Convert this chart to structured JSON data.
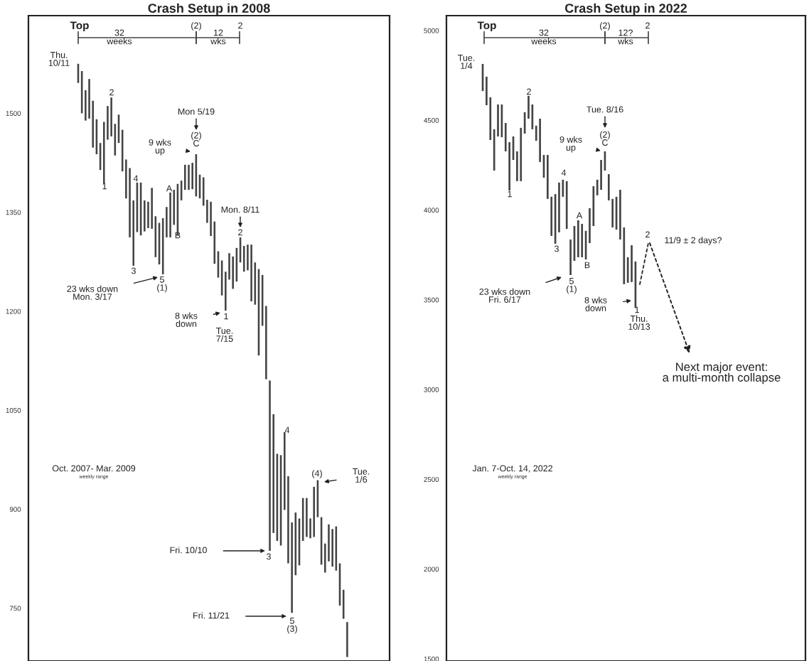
{
  "chart_data": [
    {
      "type": "bar",
      "title": "Crash Setup in 2008",
      "color": "#444444",
      "tick_labels": "y",
      "categories": [
        null,
        null,
        null,
        null,
        null,
        null,
        null,
        null,
        null,
        null,
        null,
        null,
        null,
        null,
        null,
        null,
        null,
        null,
        null,
        null,
        null,
        null,
        null,
        null,
        null,
        null,
        null,
        null,
        null,
        null,
        null,
        null,
        null,
        null,
        null,
        null,
        null,
        null,
        null,
        null,
        null,
        null,
        null,
        null,
        null,
        null,
        null,
        null,
        null,
        null,
        null,
        null,
        null,
        null,
        null,
        null,
        null,
        null,
        null,
        null,
        null,
        null,
        null,
        null,
        null,
        null,
        null,
        null,
        null,
        null,
        null,
        null,
        null,
        null,
        null,
        null,
        null,
        null,
        null,
        null,
        null,
        null,
        null,
        null,
        null,
        null,
        null,
        null,
        null,
        null,
        null,
        null,
        null,
        null,
        null,
        null,
        null,
        null
      ],
      "base": [
        null,
        null,
        null,
        null,
        null,
        null,
        null,
        null,
        null,
        null,
        null,
        null,
        null,
        1546,
        1500,
        1489,
        1492,
        1448,
        1438,
        1414,
        1393,
        1460,
        1465,
        1436,
        1455,
        1412,
        1371,
        1312,
        1269,
        1320,
        1315,
        1321,
        1326,
        1325,
        1282,
        1271,
        1256,
        1312,
        1312,
        1331,
        1315,
        1368,
        1384,
        1384,
        1385,
        1374,
        1371,
        1360,
        1334,
        1314,
        1272,
        1251,
        1224,
        1201,
        1248,
        1234,
        1245,
        1274,
        1260,
        1262,
        1215,
        1210,
        1133,
        1178,
        1097,
        837,
        864,
        852,
        845,
        899,
        818,
        743,
        800,
        815,
        852,
        858,
        856,
        858,
        888,
        816,
        804,
        821,
        813,
        807,
        754,
        734,
        676,
        null,
        null,
        null,
        null,
        null,
        null,
        null,
        null,
        null,
        null,
        null
      ],
      "values": [
        null,
        null,
        null,
        null,
        null,
        null,
        null,
        null,
        null,
        null,
        null,
        null,
        null,
        29,
        64,
        46,
        60,
        71,
        53,
        41,
        94,
        51,
        59,
        48,
        43,
        63,
        59,
        105,
        99,
        75,
        80,
        47,
        40,
        62,
        62,
        63,
        85,
        46,
        68,
        53,
        78,
        30,
        38,
        38,
        40,
        64,
        36,
        43,
        35,
        52,
        64,
        40,
        53,
        59,
        40,
        49,
        51,
        38,
        39,
        39,
        86,
        64,
        131,
        77,
        111,
        258,
        180,
        132,
        137,
        118,
        132,
        137,
        95,
        71,
        65,
        59,
        30,
        76,
        56,
        72,
        44,
        56,
        57,
        67,
        64,
        44,
        53,
        null,
        null,
        null,
        null,
        null,
        null,
        null,
        null,
        null,
        null,
        null
      ],
      "ylim": [
        670,
        1648
      ],
      "yticks": [
        1500,
        1350,
        1200,
        1050,
        900,
        750
      ],
      "annotations": [
        "Top",
        "32",
        "weeks",
        "(2)",
        "12",
        "wks",
        "2",
        "Thu.\n10/11",
        "1",
        "2",
        "3",
        "4",
        "5\n(1)",
        "23 wks down\nMon. 3/17",
        "A",
        "B",
        "9 wks\nup",
        "Mon 5/19",
        "(2)\nC",
        "Mon. 8/11",
        "2",
        "1",
        "8 wks\ndown",
        "Tue.\n7/15",
        "Fri. 10/10",
        "3",
        "4",
        "5\n(3)",
        "Fri. 11/21",
        "(4)",
        "Tue.\n1/6",
        "Oct. 2007- Mar. 2009",
        "weekly range"
      ]
    },
    {
      "type": "bar",
      "title": "Crash Setup in 2022",
      "color": "#444444",
      "tick_labels": "y",
      "categories": [
        null,
        null,
        null,
        null,
        null,
        null,
        null,
        null,
        null,
        null,
        null,
        null,
        null,
        null,
        null,
        null,
        null,
        null,
        null,
        null,
        null,
        null,
        null,
        null,
        null,
        null,
        null,
        null,
        null,
        null,
        null,
        null,
        null,
        null,
        null,
        null,
        null,
        null,
        null,
        null,
        null,
        null,
        null,
        null,
        null,
        null,
        null,
        null,
        null,
        null,
        null,
        null,
        null,
        null,
        null,
        null,
        null,
        null,
        null,
        null,
        null,
        null,
        null,
        null,
        null,
        null,
        null,
        null,
        null,
        null,
        null,
        null,
        null,
        null,
        null,
        null,
        null,
        null,
        null,
        null,
        null,
        null,
        null,
        null,
        null,
        null,
        null,
        null,
        null,
        null,
        null,
        null,
        null,
        null
      ],
      "base": [
        null,
        null,
        null,
        null,
        null,
        null,
        null,
        null,
        null,
        4663,
        4584,
        4390,
        4220,
        4410,
        4406,
        4327,
        4109,
        4279,
        4161,
        4161,
        4426,
        4509,
        4450,
        4386,
        4268,
        4180,
        4062,
        3856,
        3812,
        3876,
        4074,
        3895,
        3638,
        3717,
        3737,
        3737,
        3725,
        3816,
        3911,
        4082,
        4113,
        4220,
        4054,
        3903,
        3891,
        3836,
        3587,
        3595,
        3599,
        3456,
        null,
        null,
        null,
        null,
        null,
        null,
        null,
        null,
        null,
        null,
        null,
        null,
        null,
        null,
        null,
        null,
        null,
        null,
        null,
        null,
        null,
        null,
        null,
        null,
        null,
        null,
        null,
        null,
        null,
        null,
        null,
        null,
        null,
        null,
        null,
        null,
        null,
        null,
        null,
        null,
        null,
        null,
        null,
        null
      ],
      "values": [
        null,
        null,
        null,
        null,
        null,
        null,
        null,
        null,
        null,
        151,
        159,
        238,
        230,
        178,
        182,
        158,
        269,
        131,
        166,
        297,
        119,
        127,
        138,
        84,
        241,
        127,
        245,
        218,
        277,
        277,
        95,
        266,
        198,
        194,
        206,
        186,
        159,
        194,
        222,
        87,
        166,
        107,
        146,
        159,
        183,
        277,
        316,
        142,
        205,
        257,
        null,
        null,
        null,
        null,
        null,
        null,
        null,
        null,
        null,
        null,
        null,
        null,
        null,
        null,
        null,
        null,
        null,
        null,
        null,
        null,
        null,
        null,
        null,
        null,
        null,
        null,
        null,
        null,
        null,
        null,
        null,
        null,
        null,
        null,
        null,
        null,
        null,
        null,
        null,
        null,
        null,
        null,
        null,
        null
      ],
      "ylim": [
        1488,
        5083
      ],
      "yticks": [
        5000,
        4500,
        4000,
        3500,
        3000,
        2500,
        2000,
        1500
      ],
      "annotations": [
        "Top",
        "32",
        "weeks",
        "(2)",
        "12?",
        "wks",
        "2",
        "Tue.\n1/4",
        "1",
        "2",
        "3",
        "4",
        "5\n(1)",
        "23 wks down\nFri. 6/17",
        "A",
        "B",
        "9 wks\nup",
        "Tue. 8/16",
        "(2)\nC",
        "8 wks\ndown",
        "1",
        "Thu.\n10/13",
        "2",
        "11/9 ± 2 days?",
        "Next major event:\na multi-month collapse",
        "Jan. 7-Oct. 14, 2022",
        "weekly range"
      ]
    }
  ]
}
